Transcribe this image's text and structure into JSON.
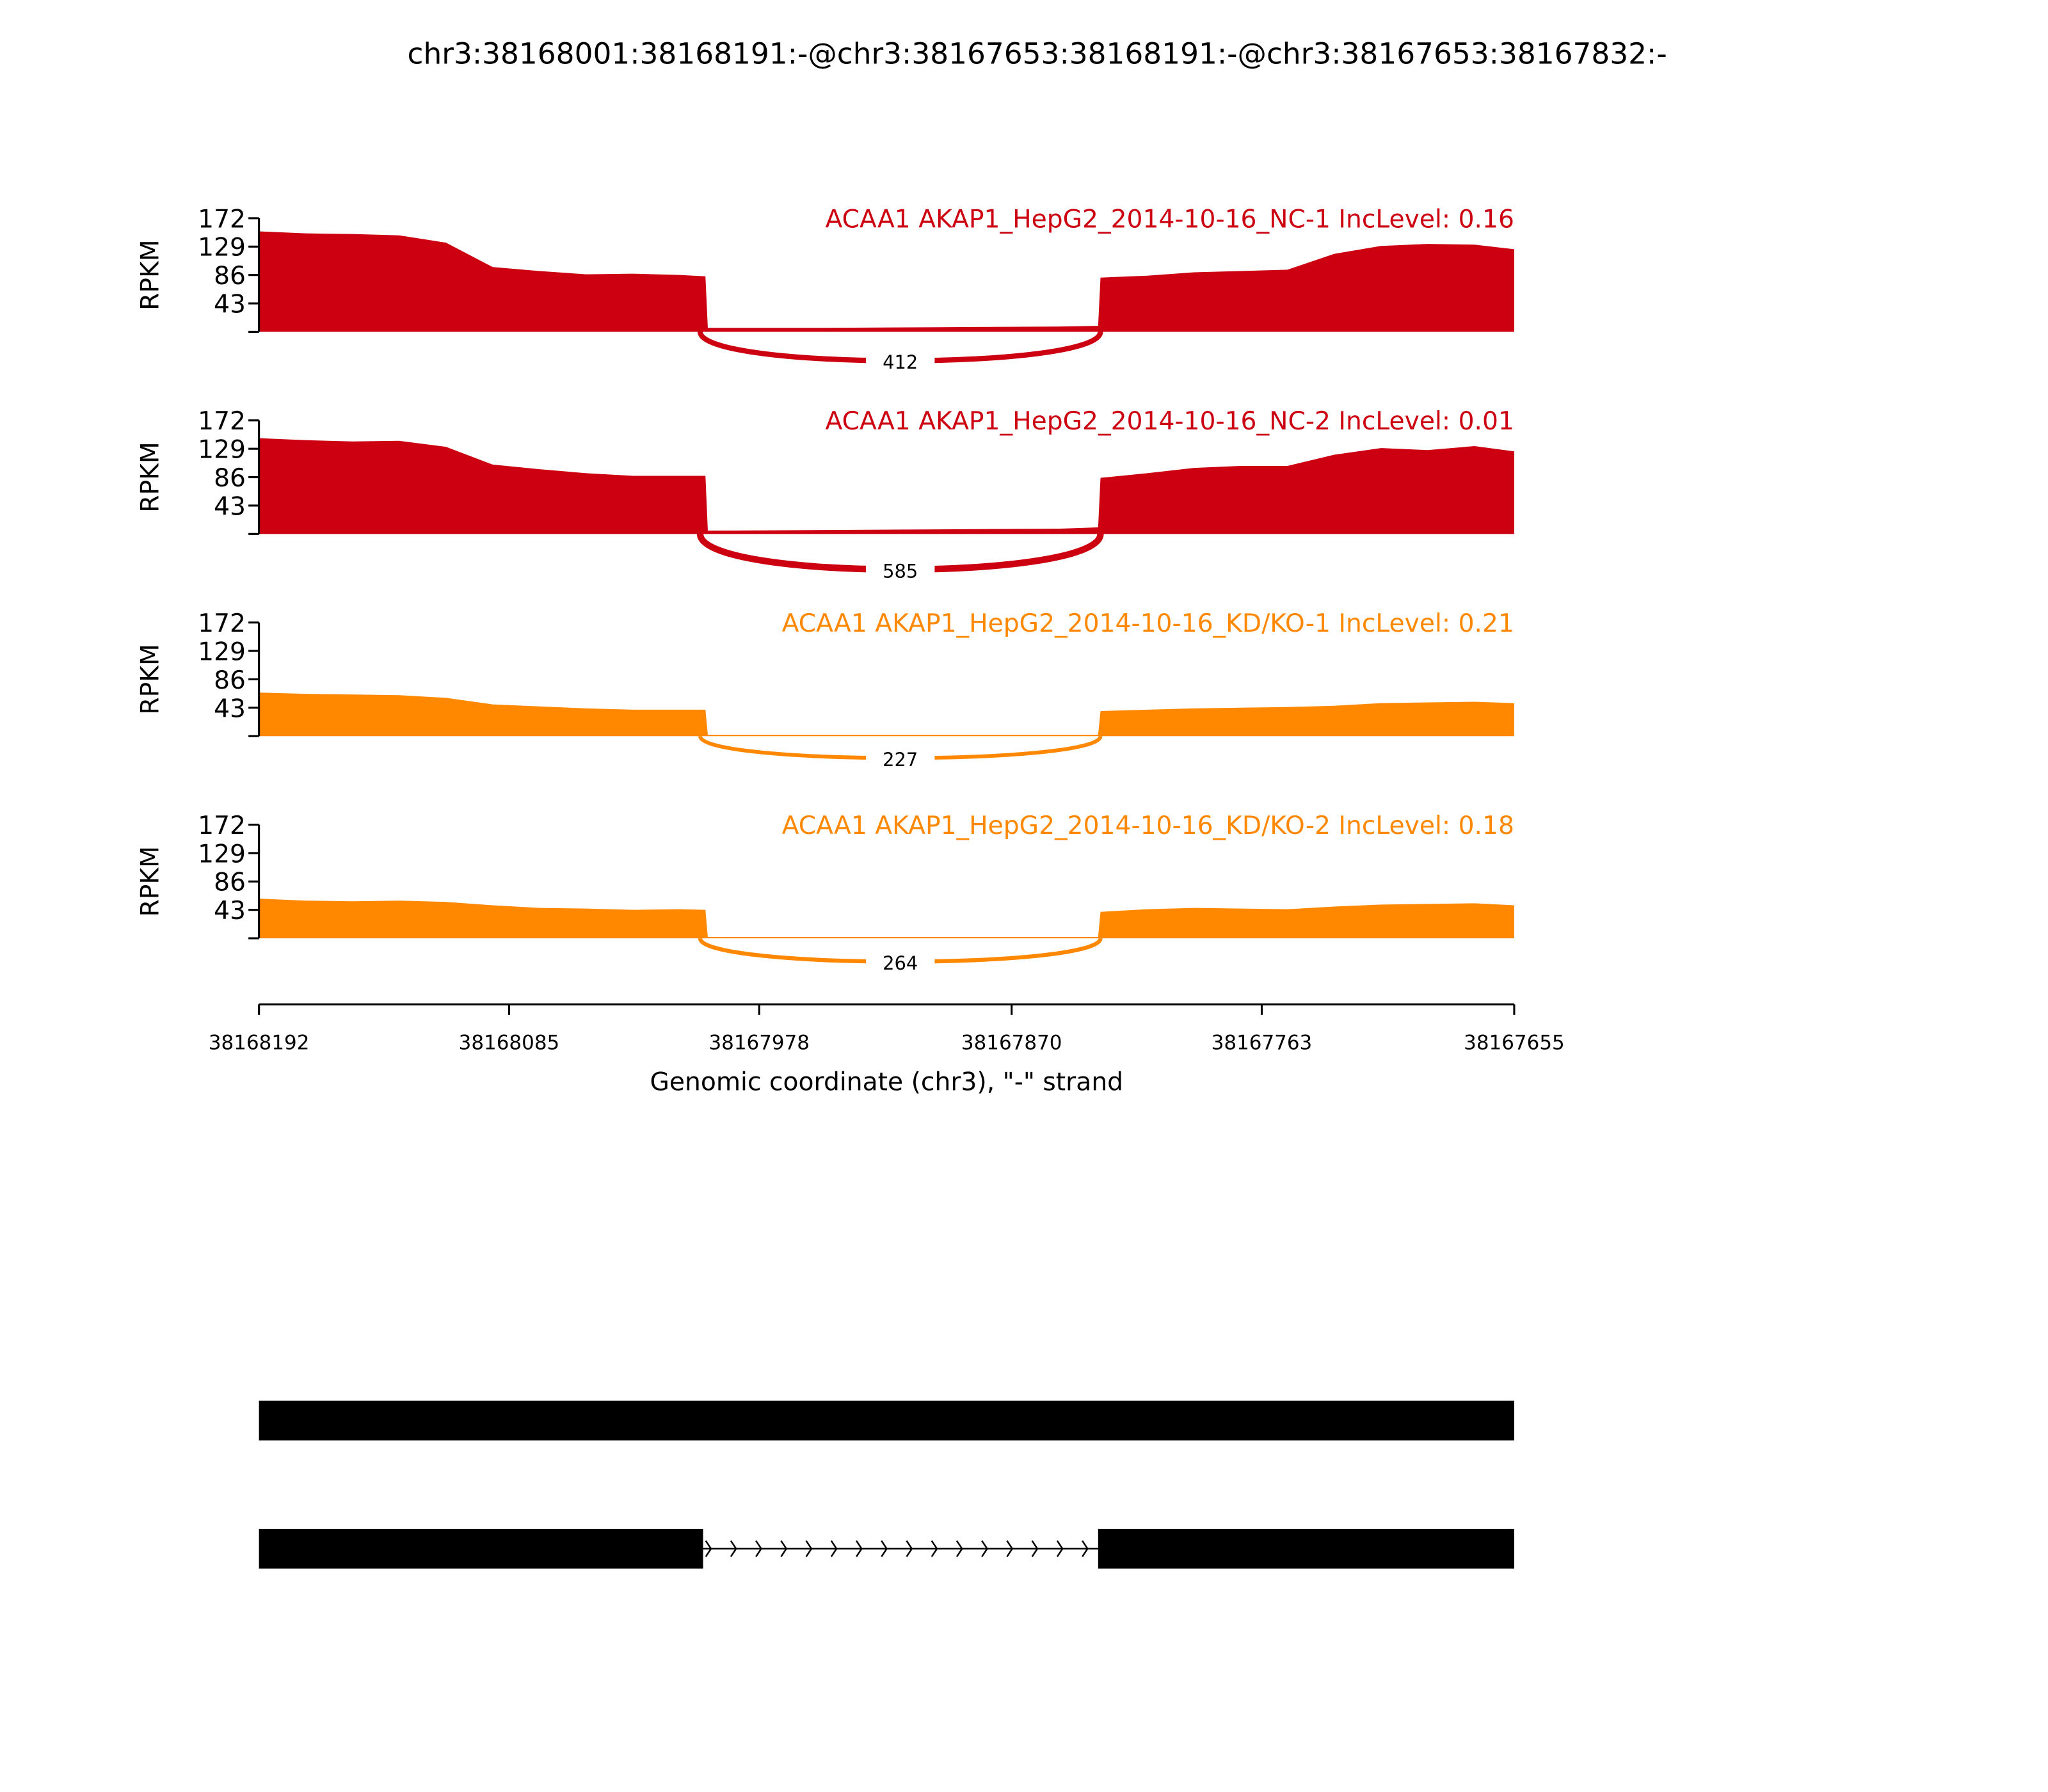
{
  "chart_data": {
    "type": "area",
    "title": "chr3:38168001:38168191:-@chr3:38167653:38168191:-@chr3:38167653:38167832:-",
    "xlabel": "Genomic coordinate (chr3), \"-\" strand",
    "ylabel": "RPKM",
    "xlim": [
      38168192,
      38167655
    ],
    "ylim": [
      0,
      172
    ],
    "x_ticks": [
      "38168192",
      "38168085",
      "38167978",
      "38167870",
      "38167763",
      "38167655"
    ],
    "x_tick_values": [
      38168192,
      38168085,
      38167978,
      38167870,
      38167763,
      38167655
    ],
    "y_ticks": [
      "172",
      "129",
      "86",
      "43"
    ],
    "y_tick_values": [
      172,
      129,
      86,
      43
    ],
    "positions": [
      38168192,
      38168172,
      38168152,
      38168132,
      38168112,
      38168092,
      38168072,
      38168052,
      38168032,
      38168012,
      38168001,
      38168000,
      38167950,
      38167900,
      38167850,
      38167833,
      38167832,
      38167812,
      38167792,
      38167772,
      38167752,
      38167732,
      38167712,
      38167692,
      38167672,
      38167655
    ],
    "junction": {
      "start": 38168001,
      "end": 38167832
    },
    "series": [
      {
        "name": "ACAA1 AKAP1_HepG2_2014-10-16_NC-1 IncLevel: 0.16",
        "color": "#cc0011",
        "junction_count": "412",
        "junction_value": 412,
        "values": [
          152,
          149,
          148,
          146,
          135,
          98,
          92,
          87,
          88,
          86,
          84,
          6,
          6,
          7,
          8,
          9,
          82,
          85,
          90,
          92,
          94,
          118,
          130,
          133,
          132,
          125
        ]
      },
      {
        "name": "ACAA1 AKAP1_HepG2_2014-10-16_NC-2 IncLevel: 0.01",
        "color": "#cc0011",
        "junction_count": "585",
        "junction_value": 585,
        "values": [
          145,
          142,
          140,
          141,
          132,
          105,
          98,
          92,
          88,
          88,
          88,
          5,
          6,
          7,
          8,
          10,
          85,
          92,
          100,
          103,
          103,
          120,
          130,
          127,
          133,
          125
        ]
      },
      {
        "name": "ACAA1 AKAP1_HepG2_2014-10-16_KD/KO-1 IncLevel: 0.21",
        "color": "#ff8800",
        "junction_count": "227",
        "junction_value": 227,
        "values": [
          66,
          64,
          63,
          62,
          58,
          48,
          45,
          42,
          40,
          40,
          40,
          2,
          2,
          2,
          2,
          2,
          38,
          40,
          42,
          43,
          44,
          46,
          50,
          51,
          52,
          50
        ]
      },
      {
        "name": "ACAA1 AKAP1_HepG2_2014-10-16_KD/KO-2 IncLevel: 0.18",
        "color": "#ff8800",
        "junction_count": "264",
        "junction_value": 264,
        "values": [
          60,
          57,
          56,
          57,
          55,
          50,
          46,
          45,
          43,
          44,
          43,
          2,
          2,
          2,
          2,
          2,
          40,
          44,
          46,
          45,
          44,
          48,
          51,
          52,
          53,
          50
        ]
      }
    ],
    "isoforms": [
      {
        "exons": [
          [
            38168192,
            38167655
          ]
        ]
      },
      {
        "exons": [
          [
            38168192,
            38168002
          ],
          [
            38167833,
            38167655
          ]
        ]
      }
    ]
  }
}
